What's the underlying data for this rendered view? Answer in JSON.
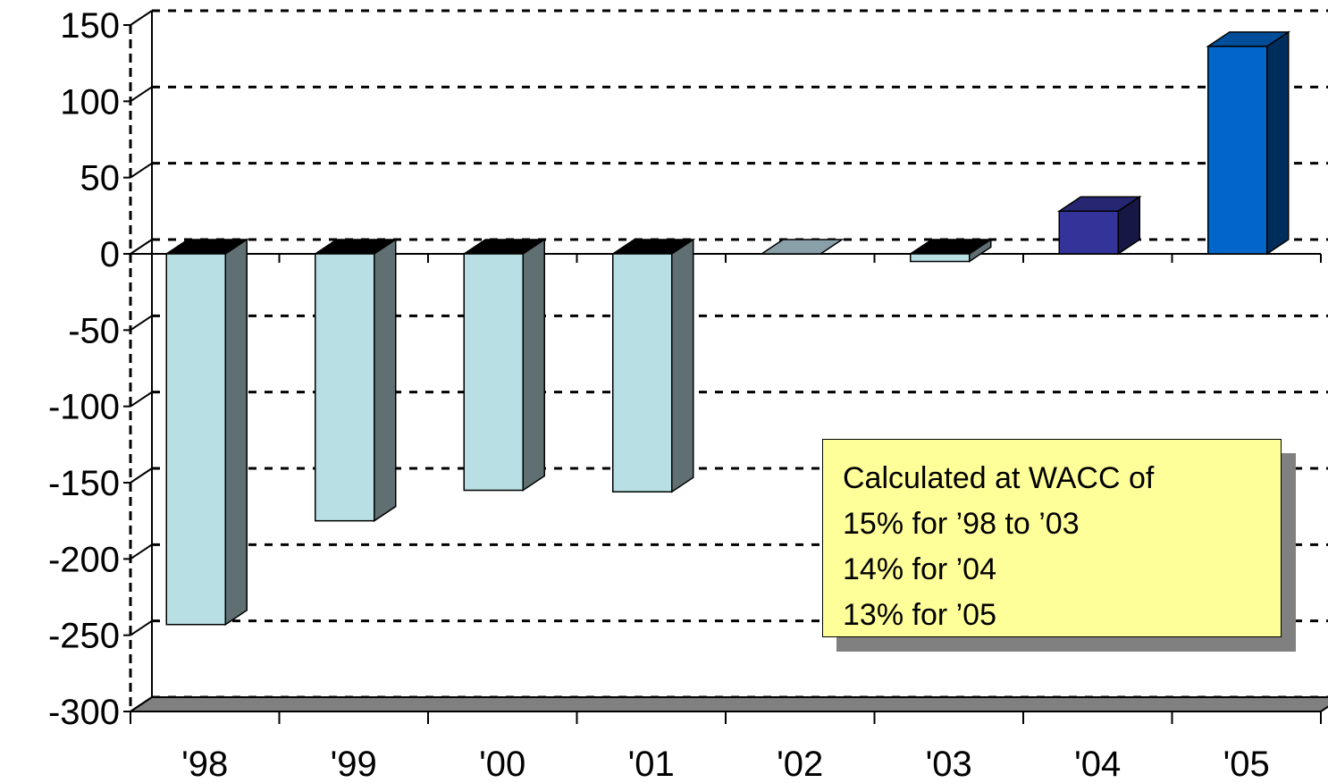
{
  "chart_data": {
    "type": "bar",
    "title": "",
    "xlabel": "",
    "ylabel": "",
    "categories": [
      "'98",
      "'99",
      "'00",
      "'01",
      "'02",
      "'03",
      "'04",
      "'05"
    ],
    "values": [
      -243,
      -175,
      -155,
      -156,
      0,
      -5,
      28,
      136
    ],
    "bar_colors": [
      "#b8dfe3",
      "#b8dfe3",
      "#b8dfe3",
      "#b8dfe3",
      "#b8dfe3",
      "#b8dfe3",
      "#333399",
      "#0066cc"
    ],
    "ylim": [
      -300,
      150
    ],
    "yticks": [
      150,
      100,
      50,
      0,
      -50,
      -100,
      -150,
      -200,
      -250,
      -300
    ],
    "ytick_labels": [
      "150",
      "100",
      "50",
      "0",
      "-50",
      "-100",
      "-150",
      "-200",
      "-250",
      "-300"
    ],
    "grid": true,
    "grid_style": "dotted",
    "style": "3d-column",
    "legend": "none"
  },
  "annotation": {
    "lines": [
      "Calculated at WACC of",
      "15% for ’98 to ’03",
      "14% for ’04",
      "13% for ’05"
    ],
    "background": "#ffff99"
  }
}
